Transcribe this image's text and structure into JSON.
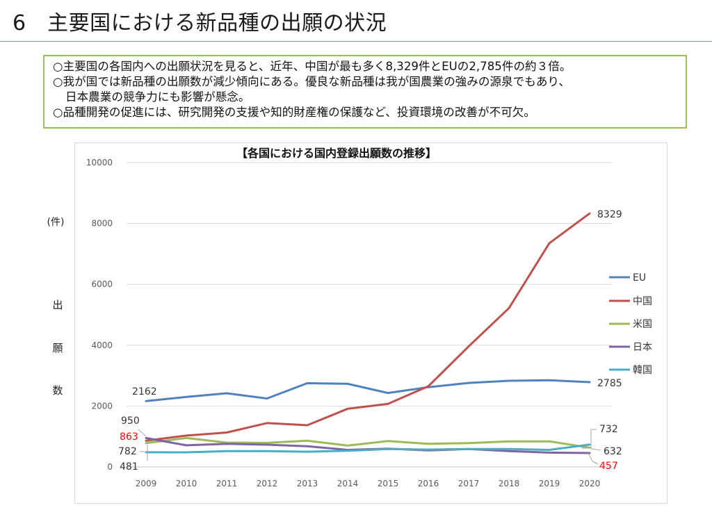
{
  "header": {
    "title": "6　主要国における新品種の出願の状況"
  },
  "summary": {
    "lines": [
      "○主要国の各国内への出願状況を見ると、近年、中国が最も多く8,329件とEUの2,785件の約３倍。",
      "○我が国では新品種の出願数が減少傾向にある。優良な新品種は我が国農業の強みの源泉でもあり、",
      "日本農業の競争力にも影響が懸念。",
      "○品種開発の促進には、研究開発の支援や知的財産権の保護など、投資環境の改善が不可欠。"
    ]
  },
  "chart_data": {
    "type": "line",
    "title": "【各国における国内登録出願数の推移】",
    "unit_label": "(件)",
    "ylabel_chars": [
      "出",
      "願",
      "数"
    ],
    "x": [
      "2009",
      "2010",
      "2011",
      "2012",
      "2013",
      "2014",
      "2015",
      "2016",
      "2017",
      "2018",
      "2019",
      "2020"
    ],
    "y_ticks": [
      "0",
      "2000",
      "4000",
      "6000",
      "8000",
      "10000"
    ],
    "ylim": [
      0,
      10000
    ],
    "grid": true,
    "legend_position": "right",
    "series": [
      {
        "name": "EU",
        "color": "#4f81bd",
        "values": [
          2162,
          2300,
          2420,
          2250,
          2750,
          2730,
          2430,
          2620,
          2760,
          2830,
          2850,
          2785
        ]
      },
      {
        "name": "中国",
        "color": "#c0504d",
        "values": [
          863,
          1030,
          1130,
          1440,
          1370,
          1910,
          2070,
          2650,
          3960,
          5220,
          7350,
          8329
        ]
      },
      {
        "name": "米国",
        "color": "#9bbb59",
        "values": [
          782,
          950,
          800,
          790,
          860,
          700,
          850,
          760,
          780,
          840,
          840,
          632
        ]
      },
      {
        "name": "日本",
        "color": "#8064a2",
        "values": [
          950,
          710,
          760,
          730,
          680,
          560,
          600,
          540,
          590,
          520,
          470,
          457
        ]
      },
      {
        "name": "韓国",
        "color": "#4bacc6",
        "values": [
          481,
          480,
          520,
          520,
          500,
          530,
          590,
          570,
          590,
          590,
          560,
          732
        ]
      }
    ],
    "annotations": [
      {
        "text": "2162",
        "color": "#333333"
      },
      {
        "text": "950",
        "color": "#333333"
      },
      {
        "text": "863",
        "color": "#ff0000"
      },
      {
        "text": "782",
        "color": "#333333"
      },
      {
        "text": "481",
        "color": "#333333"
      },
      {
        "text": "8329",
        "color": "#333333"
      },
      {
        "text": "2785",
        "color": "#333333"
      },
      {
        "text": "732",
        "color": "#333333"
      },
      {
        "text": "632",
        "color": "#333333"
      },
      {
        "text": "457",
        "color": "#ff0000"
      }
    ]
  }
}
